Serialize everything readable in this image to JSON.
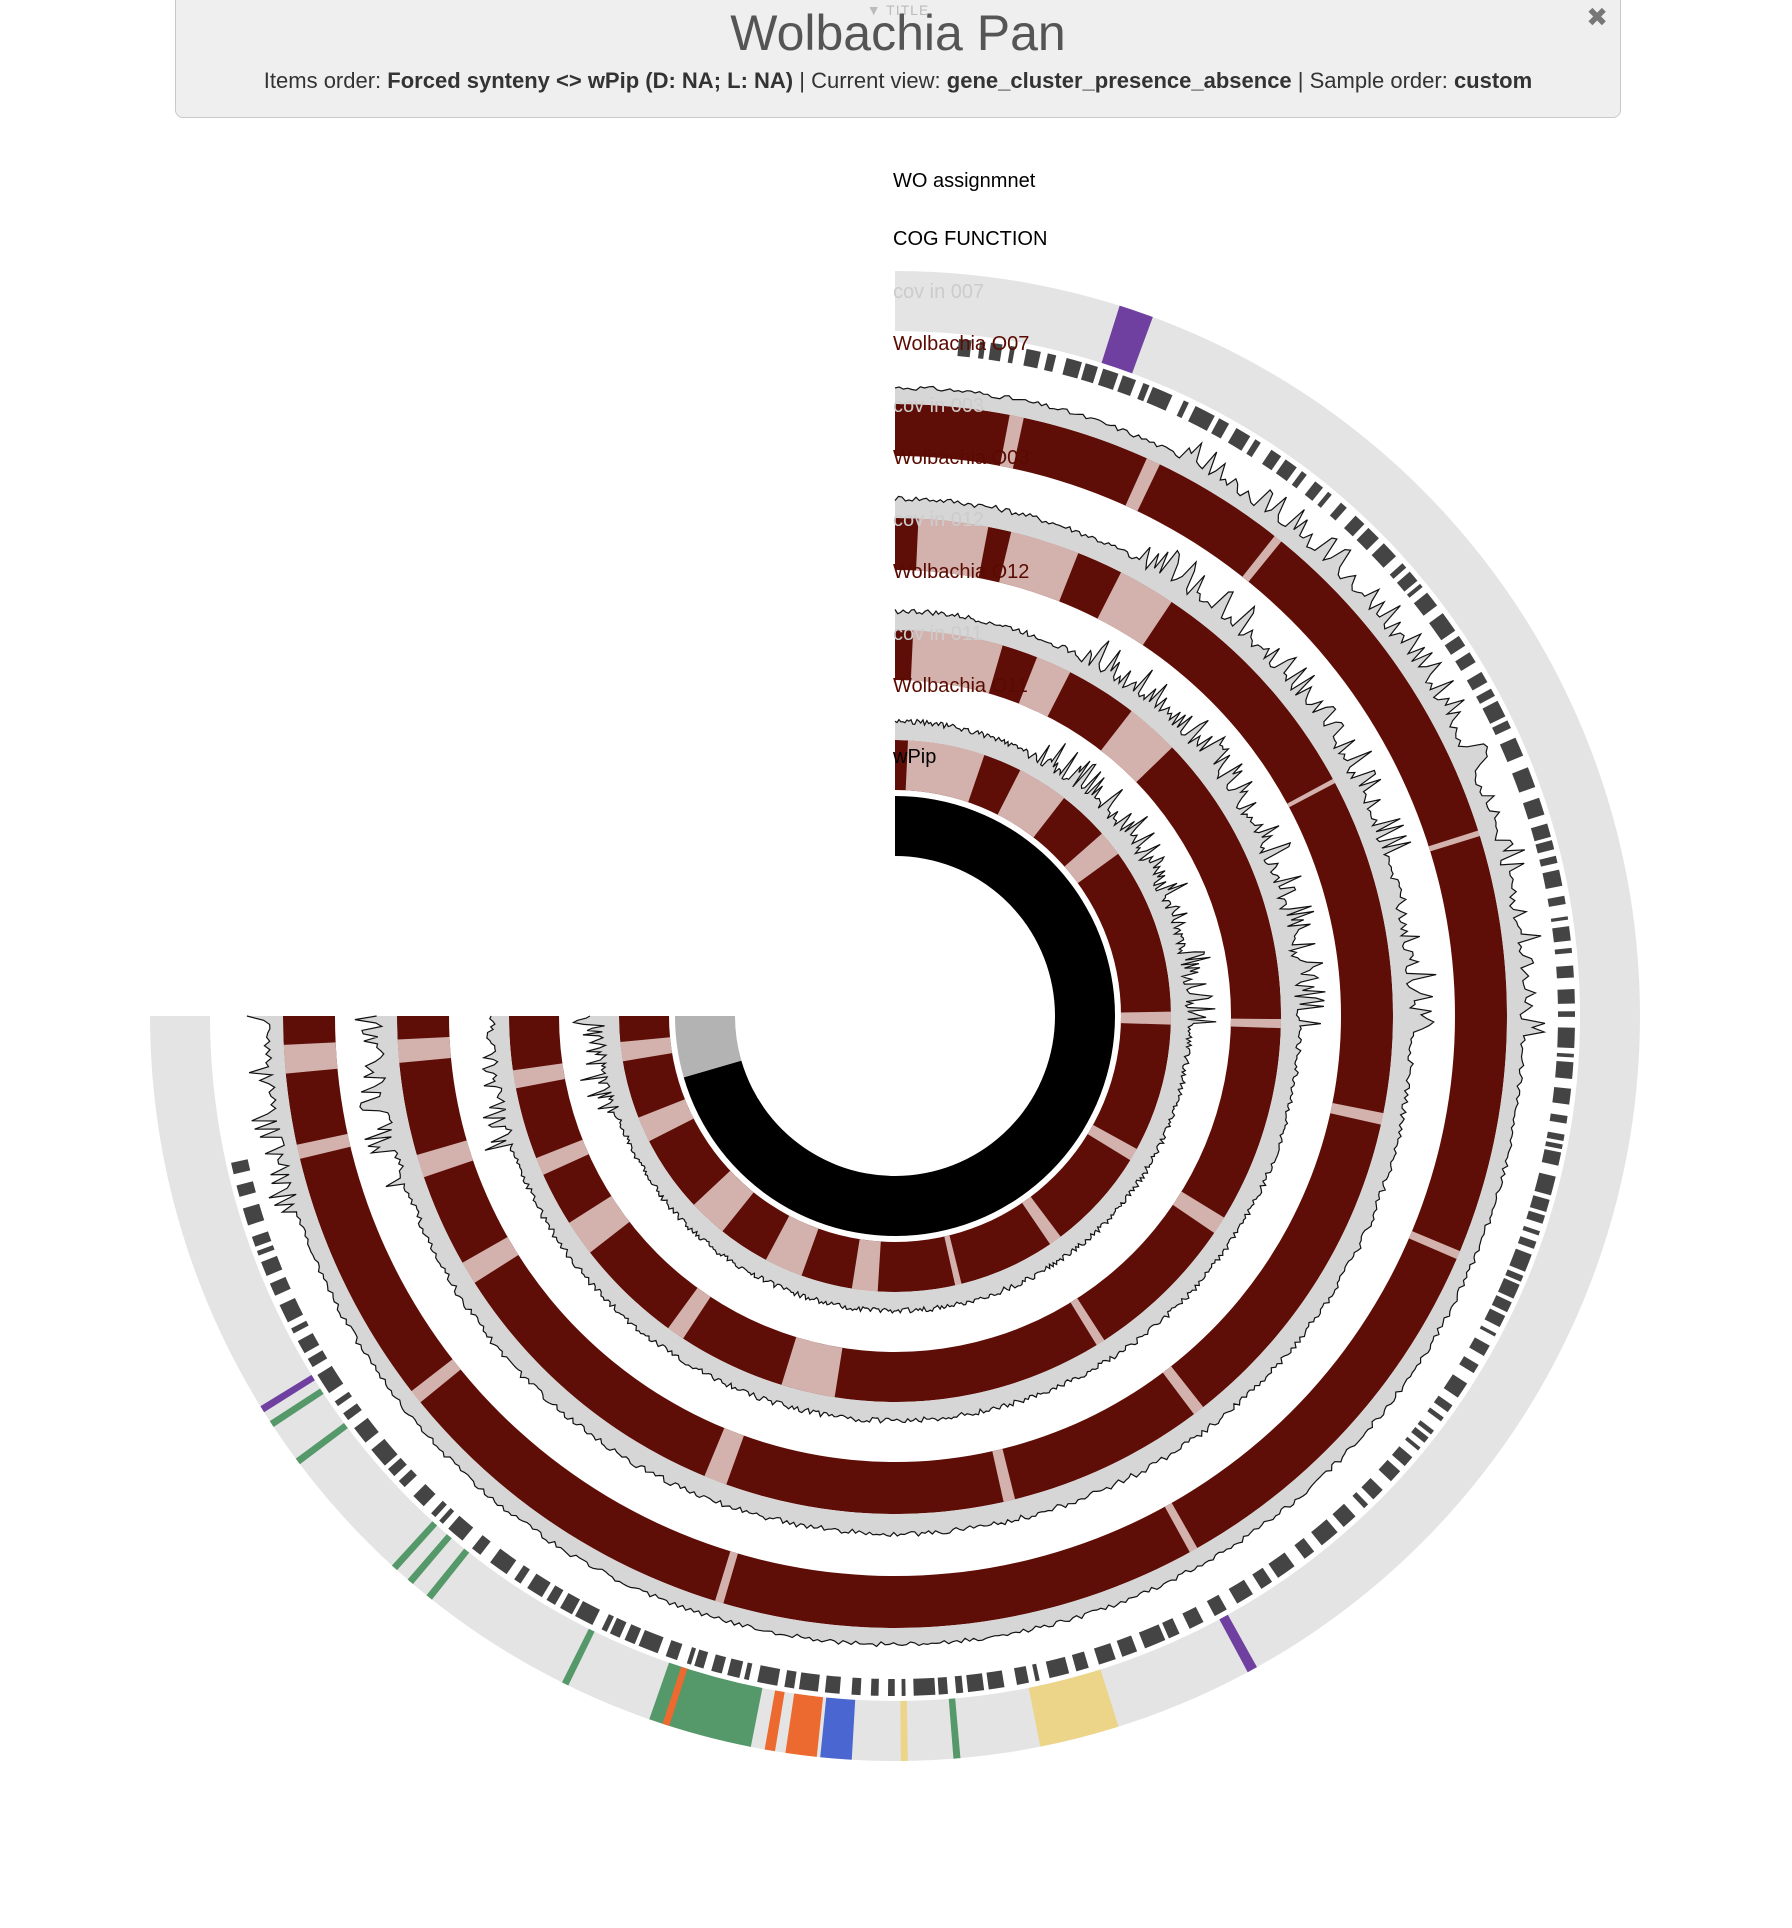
{
  "panel": {
    "toggle_label": "▼ TITLE",
    "title": "Wolbachia Pan",
    "items_order_label": "Items order:",
    "items_order_value": "Forced synteny <> wPip (D: NA; L: NA)",
    "current_view_label": "| Current view:",
    "current_view_value": "gene_cluster_presence_absence",
    "sample_order_label": "| Sample order:",
    "sample_order_value": "custom",
    "close_icon": "close-icon"
  },
  "layers": [
    {
      "key": "wo",
      "label": "WO assignmnet",
      "type": "categorical",
      "label_color": "#000000"
    },
    {
      "key": "cog",
      "label": "COG FUNCTION",
      "type": "categorical",
      "label_color": "#000000"
    },
    {
      "key": "cov007",
      "label": "cov in 007",
      "type": "coverage",
      "label_color": "#cccccc"
    },
    {
      "key": "o07",
      "label": "Wolbachia O07",
      "type": "presence",
      "label_color": "#5a0a00"
    },
    {
      "key": "cov003",
      "label": "cov in 003",
      "type": "coverage",
      "label_color": "#cccccc"
    },
    {
      "key": "o03",
      "label": "Wolbachia O03",
      "type": "presence",
      "label_color": "#5a0a00"
    },
    {
      "key": "cov012",
      "label": "cov in 012",
      "type": "coverage",
      "label_color": "#cccccc"
    },
    {
      "key": "o12",
      "label": "Wolbachia O12",
      "type": "presence",
      "label_color": "#5a0a00"
    },
    {
      "key": "cov011",
      "label": "cov in 011",
      "type": "coverage",
      "label_color": "#cccccc"
    },
    {
      "key": "o11",
      "label": "Wolbachia O11",
      "type": "presence",
      "label_color": "#5a0a00"
    },
    {
      "key": "wpip",
      "label": "wPip",
      "type": "reference",
      "label_color": "#000000"
    }
  ],
  "colors": {
    "presence": "#5f0e07",
    "absence": "#d3b2ae",
    "coverage_fill": "#d6d6d6",
    "coverage_line": "#111111",
    "track_bg": "#e4e4e4",
    "cog_bar": "#444444",
    "wpip_main": "#000000",
    "wpip_alt": "#b3b3b3",
    "wo_purple": "#7040a0",
    "wo_yellow": "#ecd588",
    "wo_green": "#55996a",
    "wo_orange": "#ec6a30",
    "wo_blue": "#4a66d0"
  }
}
